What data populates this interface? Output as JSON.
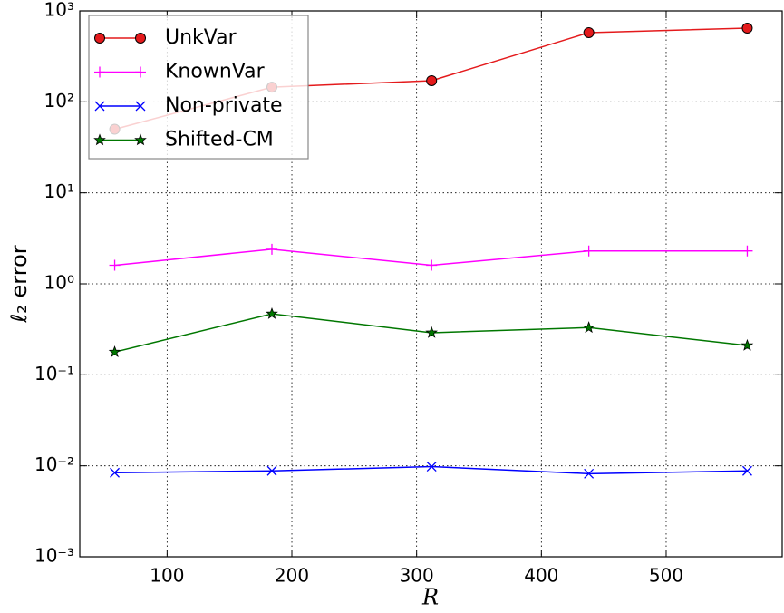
{
  "chart_data": {
    "type": "line",
    "xlabel": "R",
    "ylabel": "ℓ₂ error",
    "yscale": "log",
    "grid": true,
    "legend": "upper left",
    "x": [
      58,
      184,
      312,
      438,
      565
    ],
    "xlim": [
      30,
      593
    ],
    "xticks": [
      100,
      200,
      300,
      400,
      500
    ],
    "ylim": [
      0.001,
      1000
    ],
    "yticks": [
      {
        "value": 0.001,
        "label": "10⁻³"
      },
      {
        "value": 0.01,
        "label": "10⁻²"
      },
      {
        "value": 0.1,
        "label": "10⁻¹"
      },
      {
        "value": 1,
        "label": "10⁰"
      },
      {
        "value": 10,
        "label": "10¹"
      },
      {
        "value": 100,
        "label": "10²"
      },
      {
        "value": 1000,
        "label": "10³"
      }
    ],
    "series": [
      {
        "name": "UnkVar",
        "color": "#e41a1c",
        "marker": "circle",
        "values": [
          50,
          145,
          171,
          577,
          646
        ]
      },
      {
        "name": "KnownVar",
        "color": "#ff00ff",
        "marker": "plus",
        "values": [
          1.6,
          2.4,
          1.6,
          2.3,
          2.3
        ]
      },
      {
        "name": "Non-private",
        "color": "#0000ff",
        "marker": "x",
        "values": [
          0.0084,
          0.0088,
          0.0098,
          0.0082,
          0.0088
        ]
      },
      {
        "name": "Shifted-CM",
        "color": "#007700",
        "marker": "star",
        "values": [
          0.178,
          0.468,
          0.29,
          0.33,
          0.21
        ]
      }
    ]
  }
}
